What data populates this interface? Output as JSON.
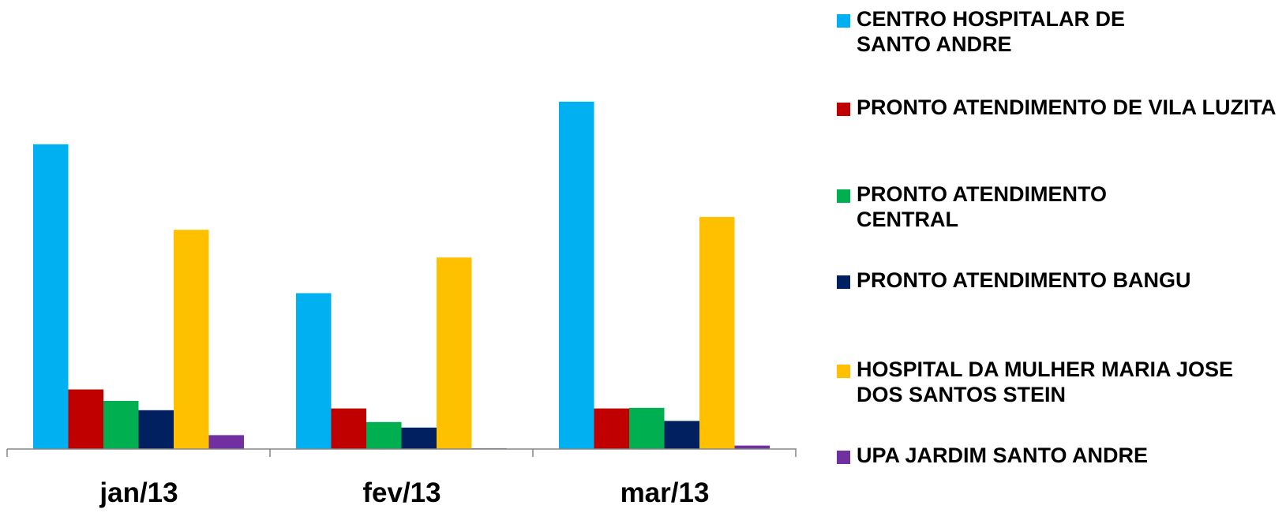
{
  "chart_data": {
    "type": "bar",
    "categories": [
      "jan/13",
      "fev/13",
      "mar/13"
    ],
    "series": [
      {
        "name": "CENTRO HOSPITALAR DE SANTO ANDRE",
        "color": "#00B0F0",
        "values": [
          880,
          450,
          1003
        ]
      },
      {
        "name": "PRONTO ATENDIMENTO DE VILA LUZITA",
        "color": "#C00000",
        "values": [
          172,
          117,
          117
        ]
      },
      {
        "name": "PRONTO ATENDIMENTO CENTRAL",
        "color": "#00B050",
        "values": [
          139,
          78,
          119
        ]
      },
      {
        "name": "PRONTO ATENDIMENTO BANGU",
        "color": "#002060",
        "values": [
          112,
          62,
          81
        ]
      },
      {
        "name": "HOSPITAL DA MULHER MARIA JOSE DOS SANTOS STEIN",
        "color": "#FFC000",
        "values": [
          633,
          553,
          670
        ]
      },
      {
        "name": "UPA JARDIM SANTO ANDRE",
        "color": "#7030A0",
        "values": [
          40,
          2,
          10
        ]
      }
    ],
    "legend_position": "right",
    "grid": false
  }
}
